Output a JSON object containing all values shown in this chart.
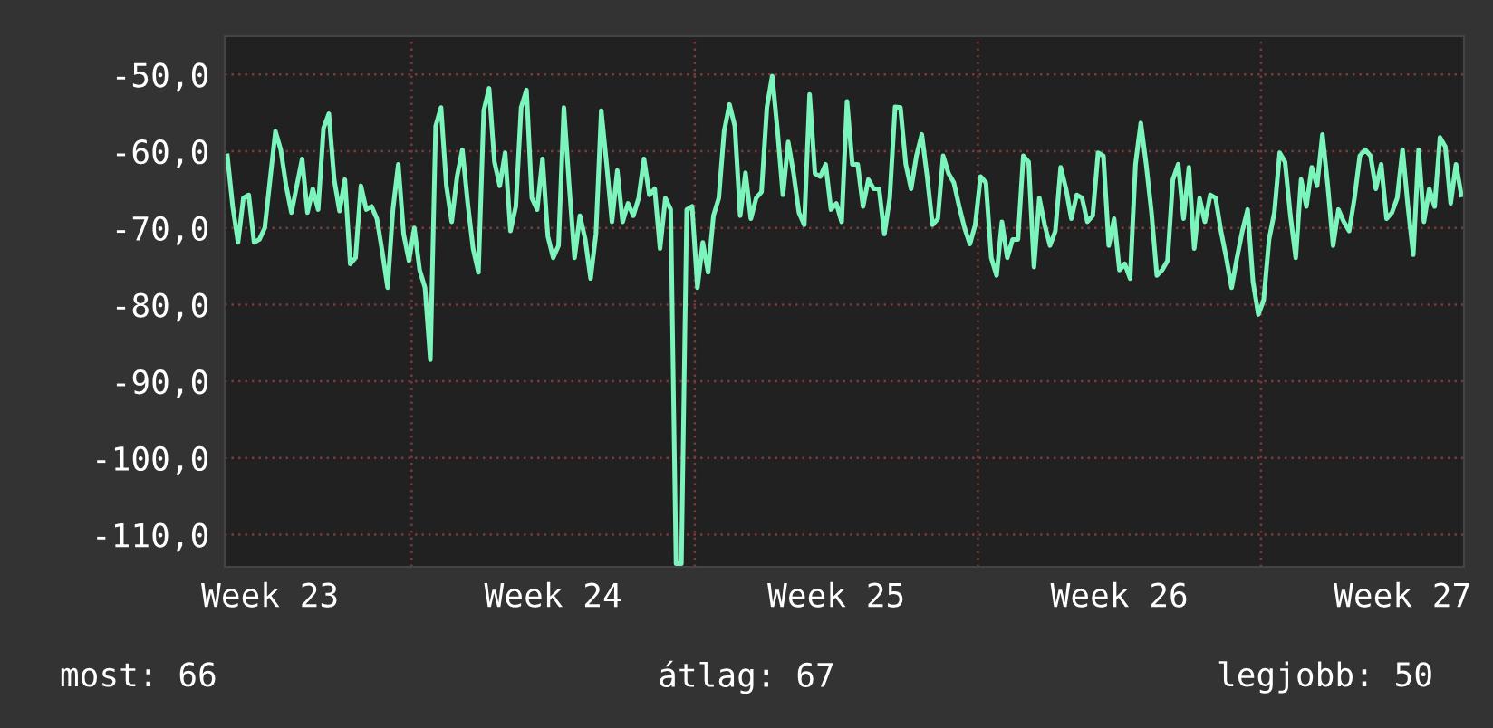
{
  "chart_data": {
    "type": "line",
    "categories": [
      null,
      null,
      null,
      null,
      null,
      null,
      null,
      null,
      "Week 23",
      null,
      null,
      null,
      null,
      null,
      null,
      null,
      null,
      null,
      null,
      null,
      null,
      null,
      null,
      null,
      null,
      null,
      null,
      null,
      null,
      null,
      null,
      null,
      null,
      null,
      null,
      null,
      null,
      null,
      null,
      null,
      null,
      null,
      null,
      null,
      null,
      null,
      null,
      null,
      null,
      null,
      null,
      null,
      null,
      null,
      null,
      null,
      null,
      null,
      null,
      null,
      null,
      "Week 24",
      null,
      null,
      null,
      null,
      null,
      null,
      null,
      null,
      null,
      null,
      null,
      null,
      null,
      null,
      null,
      null,
      null,
      null,
      null,
      null,
      null,
      null,
      null,
      null,
      null,
      null,
      null,
      null,
      null,
      null,
      null,
      null,
      null,
      null,
      null,
      null,
      null,
      null,
      null,
      null,
      null,
      null,
      null,
      null,
      null,
      null,
      null,
      null,
      null,
      null,
      null,
      null,
      "Week 25",
      null,
      null,
      null,
      null,
      null,
      null,
      null,
      null,
      null,
      null,
      null,
      null,
      null,
      null,
      null,
      null,
      null,
      null,
      null,
      null,
      null,
      null,
      null,
      null,
      null,
      null,
      null,
      null,
      null,
      null,
      null,
      null,
      null,
      null,
      null,
      null,
      null,
      null,
      null,
      null,
      null,
      null,
      null,
      null,
      null,
      null,
      null,
      null,
      null,
      null,
      null,
      null,
      "Week 26",
      null,
      null,
      null,
      null,
      null,
      null,
      null,
      null,
      null,
      null,
      null,
      null,
      null,
      null,
      null,
      null,
      null,
      null,
      null,
      null,
      null,
      null,
      null,
      null,
      null,
      null,
      null,
      null,
      null,
      null,
      null,
      null,
      null,
      null,
      null,
      null,
      null,
      null,
      null,
      null,
      null,
      null,
      null,
      null,
      null,
      null,
      null,
      null,
      null,
      null,
      null,
      null,
      "Week 27",
      null,
      null,
      null,
      null,
      null,
      null,
      null,
      null,
      null,
      null,
      null
    ],
    "series": [
      {
        "color": "#7cf5bd",
        "values": [
          -60.6,
          -67.2,
          -71.9,
          -66.1,
          -65.7,
          -71.9,
          -71.5,
          -70,
          -63.7,
          -57.4,
          -59.8,
          -64.5,
          -68,
          -64.5,
          -61,
          -68,
          -64.9,
          -67.6,
          -57,
          -55.1,
          -63.7,
          -67.8,
          -63.7,
          -74.7,
          -73.9,
          -64.5,
          -67.6,
          -67.2,
          -68.8,
          -73.1,
          -77.8,
          -67.6,
          -61.7,
          -70.8,
          -74.3,
          -70,
          -75.5,
          -77.8,
          -87.2,
          -56.7,
          -54.3,
          -64.5,
          -69.2,
          -63.3,
          -59.8,
          -66.8,
          -72.7,
          -75.8,
          -54.7,
          -51.8,
          -61.4,
          -64.5,
          -60.2,
          -70.4,
          -67.2,
          -54.3,
          -52,
          -66.1,
          -67.6,
          -61,
          -71.1,
          -73.9,
          -72.3,
          -54.3,
          -64.5,
          -73.9,
          -68.4,
          -71.5,
          -76.6,
          -70.8,
          -54.7,
          -61.7,
          -69.2,
          -62.5,
          -69.2,
          -66.8,
          -68.4,
          -66.1,
          -61,
          -65.7,
          -64.9,
          -72.7,
          -66.1,
          -67.6,
          -113.8,
          -113.8,
          -67.6,
          -67.2,
          -77.8,
          -71.9,
          -75.8,
          -68.4,
          -66.1,
          -57.4,
          -53.9,
          -56.7,
          -68.4,
          -62.8,
          -68.8,
          -66.1,
          -65.3,
          -54.3,
          -50.2,
          -57.4,
          -65.7,
          -58.8,
          -62.9,
          -68,
          -69.6,
          -52.6,
          -62.9,
          -63.3,
          -61.7,
          -67.6,
          -66.8,
          -69.2,
          -53.5,
          -61.7,
          -61.7,
          -67.2,
          -63.7,
          -64.9,
          -64.9,
          -70.8,
          -66.1,
          -54.2,
          -54.3,
          -61.7,
          -64.9,
          -60.6,
          -57.8,
          -63.3,
          -69.6,
          -68.8,
          -60.6,
          -62.9,
          -64.1,
          -67.2,
          -70,
          -72.1,
          -69.6,
          -63.3,
          -64.1,
          -73.9,
          -76.2,
          -69.2,
          -73.9,
          -71.5,
          -71.5,
          -60.6,
          -61.4,
          -75.1,
          -66.1,
          -69.6,
          -72.3,
          -70.4,
          -62.1,
          -64.9,
          -68.8,
          -65.7,
          -66.1,
          -69.2,
          -68.4,
          -60.2,
          -60.6,
          -72.3,
          -68.8,
          -75.5,
          -74.7,
          -76.6,
          -61.7,
          -56.3,
          -61.7,
          -68,
          -76.2,
          -75.5,
          -74.3,
          -63.7,
          -61.7,
          -68.8,
          -62.1,
          -72.7,
          -66.1,
          -69.2,
          -65.7,
          -66.1,
          -70.4,
          -73.9,
          -77.8,
          -73.9,
          -70.4,
          -67.6,
          -77,
          -81.3,
          -79.4,
          -71.5,
          -68,
          -60.2,
          -61.4,
          -68.4,
          -73.9,
          -63.7,
          -67.2,
          -62.1,
          -64.5,
          -57.8,
          -64.5,
          -72.3,
          -67.6,
          -69.2,
          -70.4,
          -66.1,
          -60.6,
          -59.8,
          -60.6,
          -64.9,
          -61.7,
          -68.8,
          -68,
          -66.1,
          -59.8,
          -67.2,
          -73.5,
          -59.8,
          -69.2,
          -64.9,
          -67.2,
          -58.2,
          -59.4,
          -66.8,
          -61.7,
          -65.7
        ]
      }
    ],
    "ylim": [
      -114.2,
      -45
    ],
    "yticks": [
      {
        "value": -110,
        "label": "-110,0"
      },
      {
        "value": -100,
        "label": "-100,0"
      },
      {
        "value": -90,
        "label": "-90,0"
      },
      {
        "value": -80,
        "label": "-80,0"
      },
      {
        "value": -70,
        "label": "-70,0"
      },
      {
        "value": -60,
        "label": "-60,0"
      },
      {
        "value": -50,
        "label": "-50,0"
      }
    ],
    "grid": true,
    "annotations": [
      "most: 66",
      "átlag: 67",
      "legjobb: 50"
    ]
  }
}
